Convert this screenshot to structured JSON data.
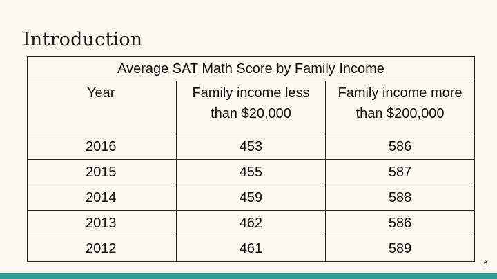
{
  "slide": {
    "title": "Introduction",
    "page_number": "6"
  },
  "table": {
    "caption": "Average SAT Math Score by Family Income",
    "headers": [
      "Year",
      "Family income less than $20,000",
      "Family income more than $200,000"
    ],
    "rows": [
      [
        "2016",
        "453",
        "586"
      ],
      [
        "2015",
        "455",
        "587"
      ],
      [
        "2014",
        "459",
        "588"
      ],
      [
        "2013",
        "462",
        "586"
      ],
      [
        "2012",
        "461",
        "589"
      ]
    ]
  },
  "colors": {
    "background": "#fdf9f0",
    "accent_bar": "#2f9c95"
  }
}
